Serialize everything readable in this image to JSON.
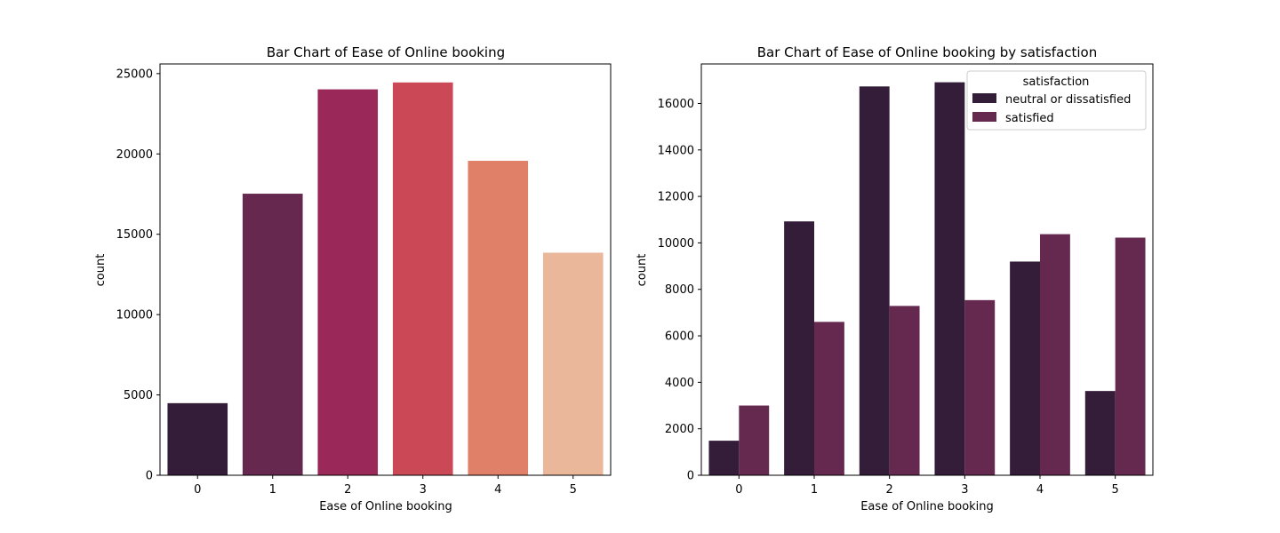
{
  "chart_data": [
    {
      "type": "bar",
      "title": "Bar Chart of Ease of Online booking",
      "xlabel": "Ease of Online booking",
      "ylabel": "count",
      "categories": [
        "0",
        "1",
        "2",
        "3",
        "4",
        "5"
      ],
      "values": [
        4487,
        17525,
        24020,
        24449,
        19571,
        13852
      ],
      "bar_colors": [
        "#331d39",
        "#67284f",
        "#9a2959",
        "#cb4856",
        "#e08068",
        "#eab79b"
      ],
      "ylim": [
        0,
        25600
      ],
      "yticks": [
        0,
        5000,
        10000,
        15000,
        20000,
        25000
      ],
      "grid": false
    },
    {
      "type": "bar",
      "title": "Bar Chart of Ease of Online booking by satisfaction",
      "xlabel": "Ease of Online booking",
      "ylabel": "count",
      "categories": [
        "0",
        "1",
        "2",
        "3",
        "4",
        "5"
      ],
      "series": [
        {
          "name": "neutral or dissatisfied",
          "color": "#331d39",
          "values": [
            1487,
            10925,
            16733,
            16912,
            9196,
            3626
          ]
        },
        {
          "name": "satisfied",
          "color": "#65284f",
          "values": [
            3000,
            6600,
            7287,
            7537,
            10375,
            10226
          ]
        }
      ],
      "legend_title": "satisfaction",
      "legend_position": "top-right",
      "ylim": [
        0,
        17700
      ],
      "yticks": [
        0,
        2000,
        4000,
        6000,
        8000,
        10000,
        12000,
        14000,
        16000
      ],
      "grid": false
    }
  ]
}
